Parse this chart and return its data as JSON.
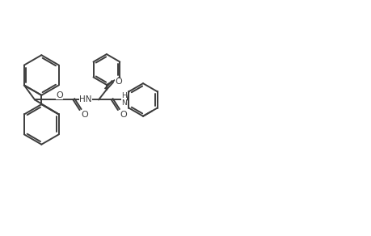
{
  "background_color": "#ffffff",
  "line_color": "#3d3d3d",
  "line_width": 1.4,
  "figsize": [
    4.59,
    2.92
  ],
  "dpi": 100,
  "xlim": [
    0,
    100
  ],
  "ylim": [
    0,
    63.5
  ]
}
